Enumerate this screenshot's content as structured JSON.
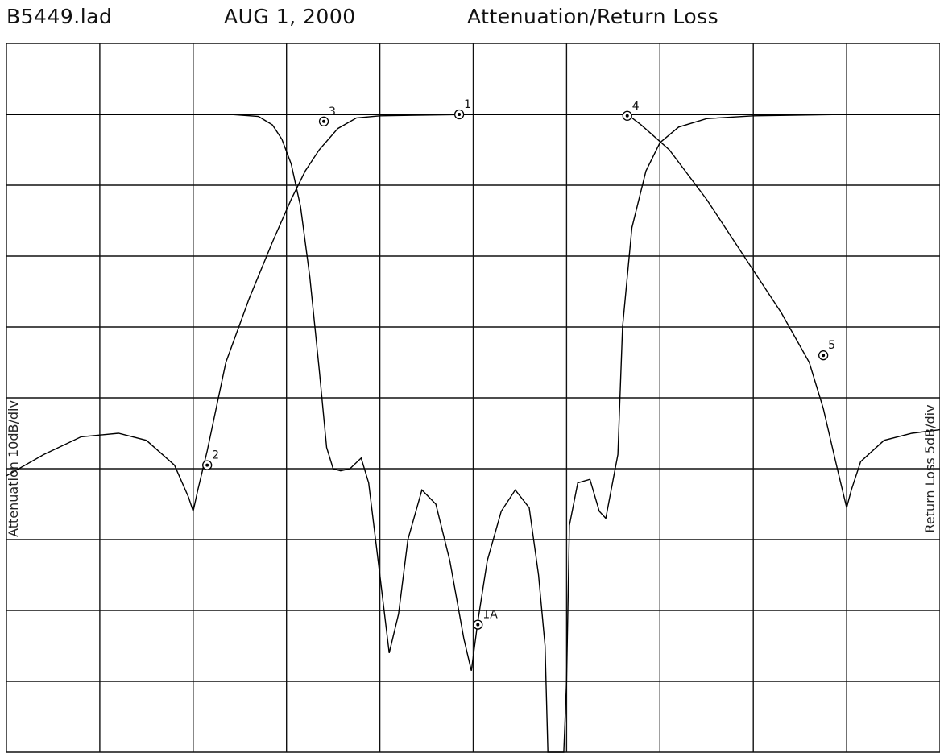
{
  "header": {
    "file": "B5449.lad",
    "date": "AUG 1, 2000",
    "title": "Attenuation/Return Loss"
  },
  "chart_data": {
    "type": "line",
    "title": "Attenuation/Return Loss",
    "ylabel_left": "Attenuation 10dB/div",
    "ylabel_right": "Return Loss 5dB/div",
    "grid": true,
    "divisions": {
      "x": 10,
      "y": 10
    },
    "x_units": "divisions (0-10)",
    "y_units": "divisions below top reference (0-10)",
    "series": [
      {
        "name": "Attenuation",
        "points": [
          [
            1.45,
            1.0
          ],
          [
            2.0,
            1.0
          ],
          [
            2.4,
            1.0
          ],
          [
            2.7,
            1.03
          ],
          [
            2.85,
            1.15
          ],
          [
            2.95,
            1.35
          ],
          [
            3.05,
            1.7
          ],
          [
            3.15,
            2.3
          ],
          [
            3.25,
            3.3
          ],
          [
            3.35,
            4.6
          ],
          [
            3.43,
            5.7
          ],
          [
            3.5,
            6.0
          ],
          [
            3.58,
            6.03
          ],
          [
            3.68,
            6.0
          ],
          [
            3.8,
            5.85
          ],
          [
            3.88,
            6.2
          ],
          [
            4.0,
            7.5
          ],
          [
            4.1,
            8.6
          ],
          [
            4.2,
            8.05
          ],
          [
            4.3,
            7.0
          ],
          [
            4.45,
            6.3
          ],
          [
            4.6,
            6.5
          ],
          [
            4.75,
            7.3
          ],
          [
            4.9,
            8.4
          ],
          [
            4.98,
            8.85
          ],
          [
            5.05,
            8.15
          ],
          [
            5.15,
            7.3
          ],
          [
            5.3,
            6.6
          ],
          [
            5.45,
            6.3
          ],
          [
            5.6,
            6.55
          ],
          [
            5.7,
            7.5
          ],
          [
            5.77,
            8.5
          ],
          [
            5.8,
            10.0
          ],
          [
            5.97,
            10.0
          ],
          [
            6.0,
            9.0
          ],
          [
            6.03,
            6.8
          ],
          [
            6.12,
            6.2
          ],
          [
            6.25,
            6.15
          ],
          [
            6.35,
            6.6
          ],
          [
            6.42,
            6.7
          ],
          [
            6.55,
            5.8
          ],
          [
            6.6,
            4.0
          ],
          [
            6.7,
            2.6
          ],
          [
            6.85,
            1.8
          ],
          [
            7.0,
            1.4
          ],
          [
            7.2,
            1.18
          ],
          [
            7.5,
            1.06
          ],
          [
            8.0,
            1.02
          ],
          [
            9.0,
            1.0
          ],
          [
            10.0,
            1.0
          ]
        ]
      },
      {
        "name": "Return Loss",
        "points": [
          [
            0.0,
            6.1
          ],
          [
            0.4,
            5.8
          ],
          [
            0.8,
            5.55
          ],
          [
            1.2,
            5.5
          ],
          [
            1.5,
            5.6
          ],
          [
            1.8,
            5.95
          ],
          [
            1.95,
            6.4
          ],
          [
            2.0,
            6.6
          ],
          [
            2.05,
            6.3
          ],
          [
            2.15,
            5.75
          ],
          [
            2.35,
            4.5
          ],
          [
            2.6,
            3.6
          ],
          [
            2.85,
            2.8
          ],
          [
            3.05,
            2.2
          ],
          [
            3.2,
            1.8
          ],
          [
            3.35,
            1.5
          ],
          [
            3.55,
            1.2
          ],
          [
            3.75,
            1.05
          ],
          [
            4.0,
            1.02
          ],
          [
            5.0,
            1.0
          ],
          [
            6.5,
            1.0
          ],
          [
            6.65,
            1.0
          ],
          [
            6.8,
            1.15
          ],
          [
            7.1,
            1.5
          ],
          [
            7.5,
            2.2
          ],
          [
            7.9,
            3.0
          ],
          [
            8.3,
            3.8
          ],
          [
            8.6,
            4.5
          ],
          [
            8.75,
            5.15
          ],
          [
            8.9,
            6.0
          ],
          [
            9.0,
            6.55
          ],
          [
            9.05,
            6.3
          ],
          [
            9.15,
            5.9
          ],
          [
            9.4,
            5.6
          ],
          [
            9.7,
            5.5
          ],
          [
            10.0,
            5.45
          ]
        ]
      }
    ],
    "markers": [
      {
        "label": "1",
        "x": 4.85,
        "y": 1.0
      },
      {
        "label": "1A",
        "x": 5.05,
        "y": 8.2
      },
      {
        "label": "2",
        "x": 2.15,
        "y": 5.95
      },
      {
        "label": "3",
        "x": 3.4,
        "y": 1.1
      },
      {
        "label": "4",
        "x": 6.65,
        "y": 1.02
      },
      {
        "label": "5",
        "x": 8.75,
        "y": 4.4
      }
    ]
  }
}
